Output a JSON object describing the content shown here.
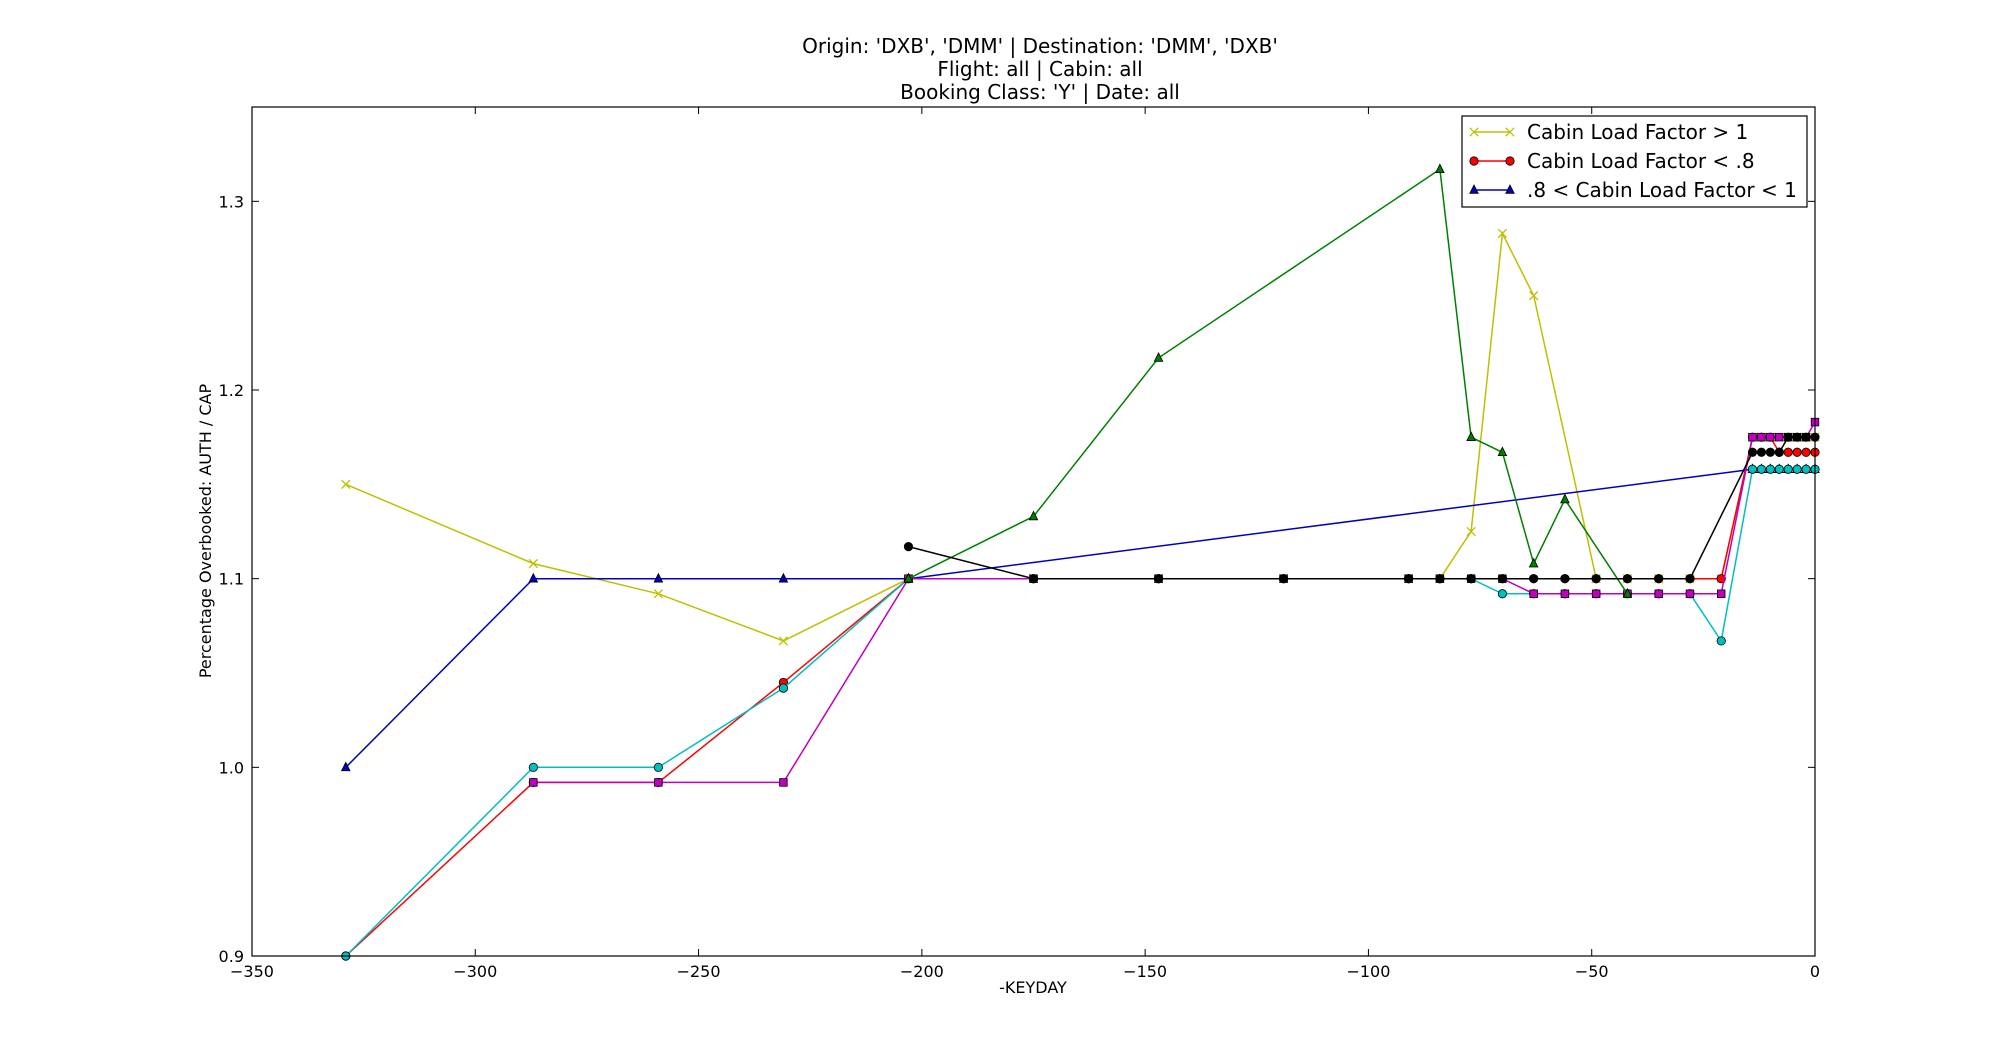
{
  "chart_data": {
    "type": "line",
    "title_lines": [
      "Origin: 'DXB', 'DMM' | Destination: 'DMM', 'DXB'",
      "Flight: all | Cabin: all",
      "Booking Class: 'Y' | Date: all"
    ],
    "xlabel": "-KEYDAY",
    "ylabel": "Percentage Overbooked: AUTH / CAP",
    "xlim": [
      -350,
      0
    ],
    "ylim": [
      0.9,
      1.35
    ],
    "x_ticks": [
      -350,
      -300,
      -250,
      -200,
      -150,
      -100,
      -50,
      0
    ],
    "x_tick_labels": [
      "−350",
      "−300",
      "−250",
      "−200",
      "−150",
      "−100",
      "−50",
      "0"
    ],
    "y_ticks": [
      0.9,
      1.0,
      1.1,
      1.2,
      1.3
    ],
    "y_tick_labels": [
      "0.9",
      "1.0",
      "1.1",
      "1.2",
      "1.3"
    ],
    "grid": false,
    "legend_position": "top-right",
    "legend": [
      {
        "label": "Cabin Load Factor > 1",
        "color": "#bfbf00",
        "marker": "x"
      },
      {
        "label": "Cabin Load Factor < .8",
        "color": "#ff0000",
        "marker": "o"
      },
      {
        "label": ".8 < Cabin Load Factor < 1",
        "color": "#0000bf",
        "marker": "^"
      }
    ],
    "series": [
      {
        "color": "#bfbf00",
        "marker": "x",
        "x": [
          -329,
          -287,
          -259,
          -231,
          -203,
          -175,
          -147,
          -119,
          -91,
          -84,
          -77,
          -70,
          -63,
          -49,
          -42,
          -35,
          -28,
          -21,
          -14,
          -12,
          -10,
          -8,
          -6,
          -4,
          -2,
          0
        ],
        "y": [
          1.15,
          1.108,
          1.092,
          1.067,
          1.1,
          1.1,
          1.1,
          1.1,
          1.1,
          1.1,
          1.125,
          1.283,
          1.25,
          1.1,
          1.1,
          1.1,
          1.1,
          1.1,
          1.175,
          1.175,
          1.175,
          1.175,
          1.175,
          1.175,
          1.175,
          1.175
        ]
      },
      {
        "color": "#0000bf",
        "marker": "^",
        "x": [
          -329,
          -287,
          -259,
          -231,
          -203,
          -14,
          -12,
          -10,
          -8,
          -6,
          -4,
          -2,
          0
        ],
        "y": [
          1.0,
          1.1,
          1.1,
          1.1,
          1.1,
          1.158,
          1.158,
          1.158,
          1.158,
          1.158,
          1.158,
          1.158,
          1.158
        ]
      },
      {
        "color": "#ff0000",
        "marker": "o",
        "x": [
          -329,
          -287,
          -259,
          -231,
          -203,
          -175,
          -147,
          -119,
          -91,
          -84,
          -77,
          -70,
          -63,
          -56,
          -49,
          -42,
          -35,
          -28,
          -21,
          -14,
          -12,
          -10,
          -8,
          -6,
          -4,
          -2,
          0
        ],
        "y": [
          0.9,
          0.992,
          0.992,
          1.045,
          1.1,
          1.1,
          1.1,
          1.1,
          1.1,
          1.1,
          1.1,
          1.1,
          1.1,
          1.1,
          1.1,
          1.1,
          1.1,
          1.1,
          1.1,
          1.175,
          1.175,
          1.175,
          1.167,
          1.167,
          1.167,
          1.167,
          1.167
        ]
      },
      {
        "color": "#00bfbf",
        "marker": "o",
        "x": [
          -329,
          -287,
          -259,
          -231,
          -203,
          -175,
          -147,
          -119,
          -91,
          -84,
          -77,
          -70,
          -63,
          -56,
          -49,
          -42,
          -35,
          -28,
          -21,
          -14,
          -12,
          -10,
          -8,
          -6,
          -4,
          -2,
          0
        ],
        "y": [
          0.9,
          1.0,
          1.0,
          1.042,
          1.1,
          1.1,
          1.1,
          1.1,
          1.1,
          1.1,
          1.1,
          1.092,
          1.092,
          1.092,
          1.092,
          1.092,
          1.092,
          1.092,
          1.067,
          1.158,
          1.158,
          1.158,
          1.158,
          1.158,
          1.158,
          1.158,
          1.158
        ]
      },
      {
        "color": "#bf00bf",
        "marker": "s",
        "x": [
          -287,
          -259,
          -231,
          -203,
          -175,
          -147,
          -119,
          -91,
          -84,
          -77,
          -70,
          -63,
          -56,
          -49,
          -42,
          -35,
          -28,
          -21,
          -14,
          -12,
          -10,
          -8,
          -6,
          -4,
          -2,
          0
        ],
        "y": [
          0.992,
          0.992,
          0.992,
          1.1,
          1.1,
          1.1,
          1.1,
          1.1,
          1.1,
          1.1,
          1.1,
          1.092,
          1.092,
          1.092,
          1.092,
          1.092,
          1.092,
          1.092,
          1.175,
          1.175,
          1.175,
          1.175,
          1.175,
          1.175,
          1.175,
          1.183
        ]
      },
      {
        "color": "#007f00",
        "marker": "^",
        "x": [
          -203,
          -175,
          -147,
          -84,
          -77,
          -70,
          -63,
          -56,
          -42
        ],
        "y": [
          1.1,
          1.133,
          1.217,
          1.317,
          1.175,
          1.167,
          1.108,
          1.142,
          1.092
        ]
      },
      {
        "color": "#000000",
        "marker": "o",
        "x": [
          -203,
          -175,
          -147,
          -119,
          -91,
          -84,
          -77,
          -70,
          -63,
          -56,
          -49,
          -42,
          -35,
          -28,
          -14,
          -12,
          -10,
          -8,
          -6,
          -4,
          -2,
          0
        ],
        "y": [
          1.117,
          1.1,
          1.1,
          1.1,
          1.1,
          1.1,
          1.1,
          1.1,
          1.1,
          1.1,
          1.1,
          1.1,
          1.1,
          1.1,
          1.167,
          1.167,
          1.167,
          1.167,
          1.175,
          1.175,
          1.175,
          1.175
        ]
      }
    ]
  }
}
